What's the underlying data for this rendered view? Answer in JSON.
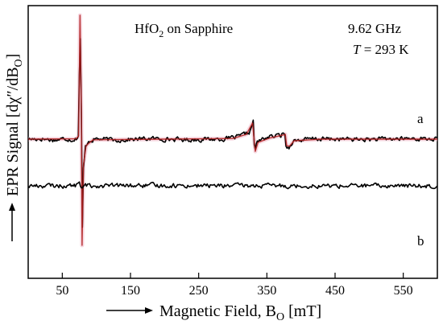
{
  "chart_data": {
    "type": "line",
    "title": "",
    "xlabel": {
      "prefix": "Magnetic Field, B",
      "sub": "O",
      "suffix": " [mT]"
    },
    "ylabel": {
      "prefix": "EPR Signal [dχ″/dB",
      "sub": "O",
      "suffix": "]"
    },
    "xlim": [
      0,
      600
    ],
    "xticks": [
      50,
      150,
      250,
      350,
      450,
      550
    ],
    "xtick_labels": [
      "50",
      "150",
      "250",
      "350",
      "450",
      "550"
    ],
    "y_ticks_shown": false,
    "annotations": {
      "sample": {
        "prefix": "HfO",
        "sub": "2",
        "suffix": " on Sapphire"
      },
      "frequency": "9.62 GHz",
      "temperature": {
        "symbol": "T",
        "rest": " = 293 K"
      }
    },
    "series": [
      {
        "name": "a",
        "type": "measured",
        "color": "#000000",
        "baseline": 0,
        "points": [
          [
            0,
            0
          ],
          [
            20,
            0.01
          ],
          [
            40,
            -0.03
          ],
          [
            55,
            0.02
          ],
          [
            65,
            -0.02
          ],
          [
            70,
            0.02
          ],
          [
            74,
            0.1
          ],
          [
            76,
            3.9
          ],
          [
            78,
            0.8
          ],
          [
            79,
            -3.35
          ],
          [
            81,
            -0.9
          ],
          [
            84,
            -0.25
          ],
          [
            88,
            -0.05
          ],
          [
            100,
            0.01
          ],
          [
            130,
            -0.03
          ],
          [
            180,
            0.02
          ],
          [
            230,
            -0.02
          ],
          [
            290,
            0.01
          ],
          [
            310,
            0.08
          ],
          [
            325,
            0.22
          ],
          [
            330,
            0.55
          ],
          [
            331,
            0.1
          ],
          [
            332,
            -0.4
          ],
          [
            336,
            -0.08
          ],
          [
            350,
            0.06
          ],
          [
            370,
            0.12
          ],
          [
            376,
            0.2
          ],
          [
            378,
            -0.18
          ],
          [
            382,
            -0.28
          ],
          [
            388,
            -0.05
          ],
          [
            420,
            0.01
          ],
          [
            500,
            -0.01
          ],
          [
            560,
            0.02
          ],
          [
            600,
            0.0
          ]
        ]
      },
      {
        "name": "",
        "type": "simulation",
        "color": "#b02020",
        "baseline": 0,
        "points": [
          [
            0,
            0
          ],
          [
            70,
            0.01
          ],
          [
            74,
            0.1
          ],
          [
            76,
            3.85
          ],
          [
            78,
            0.7
          ],
          [
            79,
            -3.3
          ],
          [
            81,
            -0.8
          ],
          [
            85,
            -0.2
          ],
          [
            95,
            -0.02
          ],
          [
            200,
            0
          ],
          [
            300,
            0.02
          ],
          [
            320,
            0.15
          ],
          [
            329,
            0.5
          ],
          [
            331,
            0.05
          ],
          [
            333,
            -0.38
          ],
          [
            337,
            -0.1
          ],
          [
            355,
            0.04
          ],
          [
            374,
            0.13
          ],
          [
            377,
            0.15
          ],
          [
            379,
            -0.2
          ],
          [
            383,
            -0.22
          ],
          [
            390,
            -0.05
          ],
          [
            430,
            0
          ],
          [
            600,
            0
          ]
        ]
      },
      {
        "name": "b",
        "type": "measured",
        "color": "#000000",
        "baseline": -1.45,
        "points": [
          [
            0,
            0
          ],
          [
            40,
            0
          ],
          [
            70,
            0.0
          ],
          [
            73,
            0.08
          ],
          [
            75,
            0.12
          ],
          [
            77,
            -0.05
          ],
          [
            79,
            -0.08
          ],
          [
            82,
            0.02
          ],
          [
            90,
            0
          ],
          [
            200,
            0.01
          ],
          [
            350,
            0
          ],
          [
            600,
            0
          ]
        ]
      }
    ]
  }
}
